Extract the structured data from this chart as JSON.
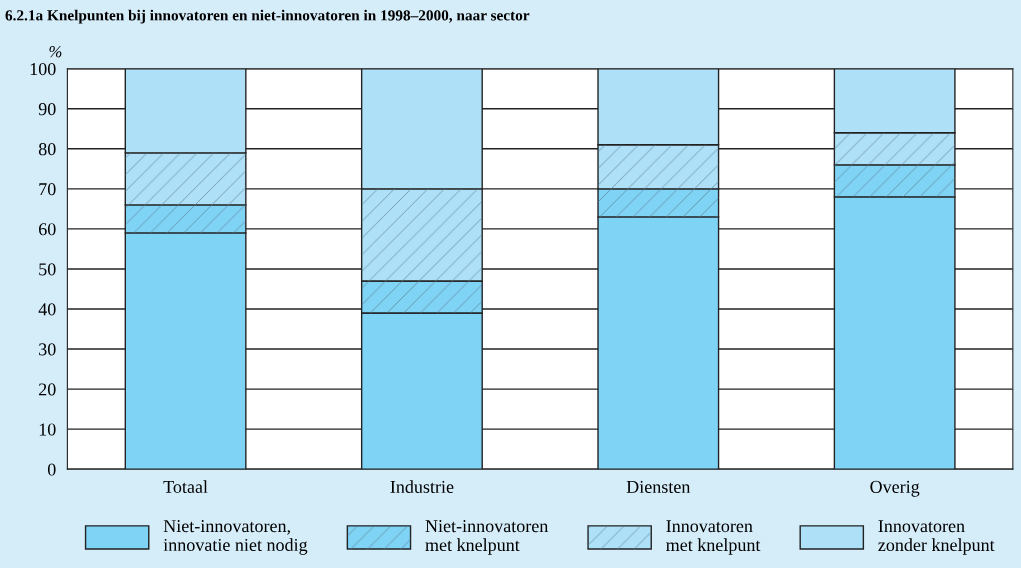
{
  "chart_data": {
    "type": "bar",
    "title": "6.2.1a Knelpunten bij innovatoren en niet-innovatoren in 1998–2000, naar sector",
    "ylabel": "%",
    "categories": [
      "Totaal",
      "Industrie",
      "Diensten",
      "Overig"
    ],
    "stacked": true,
    "ylim": [
      0,
      100
    ],
    "yticks": [
      0,
      10,
      20,
      30,
      40,
      50,
      60,
      70,
      80,
      90,
      100
    ],
    "grid": "y",
    "legend": "bottom",
    "series": [
      {
        "name": "Niet-innovatoren,\ninnovatie niet nodig",
        "color": "#7fd3f5",
        "values": [
          59,
          39,
          63,
          68
        ]
      },
      {
        "name": "Niet-innovatoren\nmet knelpunt",
        "color": "#7fd3f5",
        "values": [
          7,
          8,
          7,
          8
        ]
      },
      {
        "name": "Innovatoren\nmet knelpunt",
        "color": "#aee0f8",
        "values": [
          13,
          23,
          11,
          8
        ]
      },
      {
        "name": "Innovatoren\nzonder knelpunt",
        "color": "#aee0f8",
        "values": [
          21,
          30,
          19,
          16
        ]
      }
    ]
  }
}
